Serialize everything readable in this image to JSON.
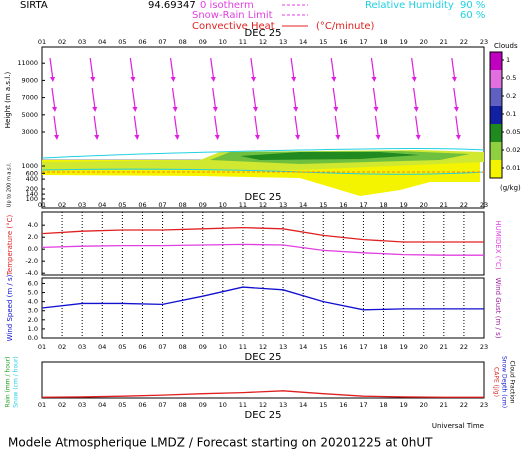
{
  "header": {
    "site": "SIRTA",
    "coords": "94.69347",
    "zero_isotherm": "0 isotherm",
    "snow_rain": "Snow-Rain Limit",
    "convective": "Convective Heat",
    "convective_unit": "(°C/minute)",
    "rh": "Relative Humidity",
    "rh_high": "90 %",
    "rh_low": "60 %"
  },
  "hours": [
    "01",
    "02",
    "03",
    "04",
    "05",
    "06",
    "07",
    "08",
    "09",
    "10",
    "11",
    "12",
    "13",
    "14",
    "15",
    "16",
    "17",
    "18",
    "19",
    "20",
    "21",
    "22",
    "23"
  ],
  "date": "DEC 25",
  "time_label": "Universal Time",
  "clouds_panel": {
    "ylabel": "Height (m a.s.l.)",
    "low_label": "Up to 200 m a.s.l.",
    "yticks": [
      11000,
      9000,
      7000,
      5000,
      3000,
      1000,
      600,
      400,
      200,
      140,
      100
    ],
    "colorbar": {
      "title": "Clouds",
      "levels": [
        1,
        0.5,
        0.2,
        0.1,
        0.05,
        0.02,
        0.01
      ],
      "unit": "(g/kg)"
    }
  },
  "chart_data": [
    {
      "type": "line",
      "ylabel": "Temperature (°C)",
      "y2label": "HUMIDEX (°C)",
      "x": [
        1,
        3,
        5,
        7,
        9,
        11,
        13,
        15,
        17,
        19,
        21,
        23
      ],
      "xlim": [
        1,
        23
      ],
      "ylim": [
        -4.3,
        6.2
      ],
      "yticks": [
        {
          "value": 4,
          "label": "4.0"
        },
        {
          "value": 2,
          "label": "2.0"
        },
        {
          "value": 0,
          "label": "0.0"
        },
        {
          "value": -2,
          "label": "-2.0"
        },
        {
          "value": -4,
          "label": "-4.0"
        }
      ],
      "series": [
        {
          "color": "#e02020",
          "values": [
            2.6,
            3.0,
            3.2,
            3.2,
            3.4,
            3.6,
            3.4,
            2.3,
            1.6,
            1.2,
            1.2,
            1.2
          ]
        },
        {
          "color": "#e040e0",
          "values": [
            0.3,
            0.5,
            0.6,
            0.6,
            0.7,
            0.8,
            0.7,
            -0.2,
            -0.6,
            -0.9,
            -1.0,
            -1.0
          ]
        }
      ]
    },
    {
      "type": "line",
      "ylabel": "Wind Speed (m / s)",
      "y2label": "Wind Gust (m / s)",
      "x": [
        1,
        3,
        5,
        7,
        9,
        11,
        13,
        15,
        17,
        19,
        21,
        23
      ],
      "xlim": [
        1,
        23
      ],
      "ylim": [
        0,
        6.6
      ],
      "yticks": [
        {
          "value": 6,
          "label": "6.0"
        },
        {
          "value": 5,
          "label": "5.0"
        },
        {
          "value": 4,
          "label": "4.0"
        },
        {
          "value": 3,
          "label": "3.0"
        },
        {
          "value": 2,
          "label": "2.0"
        },
        {
          "value": 1,
          "label": "1.0"
        },
        {
          "value": 0,
          "label": "0.0"
        }
      ],
      "series": [
        {
          "color": "#1010d0",
          "values": [
            3.3,
            3.8,
            3.8,
            3.7,
            4.6,
            5.6,
            5.3,
            4.0,
            3.1,
            3.2,
            3.2,
            3.2
          ]
        }
      ]
    },
    {
      "type": "line",
      "ylabels": [
        "Rain (mm / hour)",
        "Snow (cm / hour)"
      ],
      "y2labels": [
        "CAPE (J/g)",
        "Snow Depth (cm)",
        "Cloud Fraction"
      ],
      "x": [
        1,
        3,
        5,
        7,
        9,
        11,
        13,
        15,
        17,
        19,
        21,
        23
      ],
      "xlim": [
        1,
        23
      ],
      "ylim": [
        0,
        1
      ],
      "series": [
        {
          "color": "#e02020",
          "values": [
            0.02,
            0.03,
            0.05,
            0.08,
            0.12,
            0.15,
            0.2,
            0.12,
            0.05,
            0.03,
            0.02,
            0.02
          ]
        }
      ]
    }
  ],
  "footer": "Modele Atmospherique LMDZ / Forecast starting on 20201225 at 0hUT"
}
